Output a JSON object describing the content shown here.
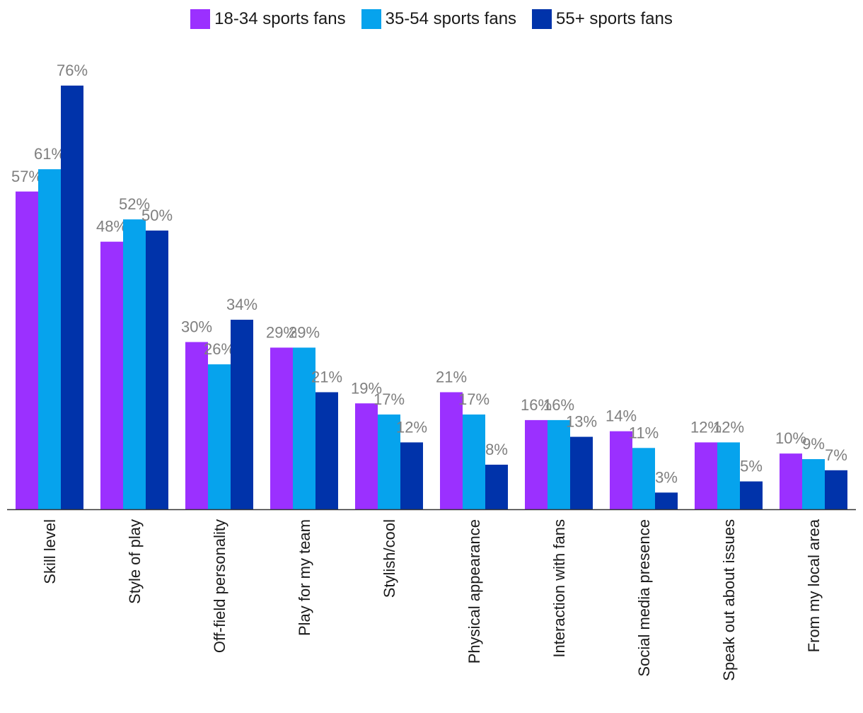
{
  "chart_data": {
    "type": "bar",
    "title": "",
    "xlabel": "",
    "ylabel": "",
    "ylim": [
      0,
      80
    ],
    "grid": false,
    "legend_position": "top-center",
    "value_suffix": "%",
    "categories": [
      "Skill level",
      "Style of play",
      "Off-field personality",
      "Play for my team",
      "Stylish/cool",
      "Physical appearance",
      "Interaction with fans",
      "Social media presence",
      "Speak out about issues",
      "From my local area"
    ],
    "series": [
      {
        "name": "18-34 sports fans",
        "color": "#9b30ff",
        "values": [
          57,
          48,
          30,
          29,
          19,
          21,
          16,
          14,
          12,
          10
        ]
      },
      {
        "name": "35-54 sports fans",
        "color": "#06a3ed",
        "values": [
          61,
          52,
          26,
          29,
          17,
          17,
          16,
          11,
          12,
          9
        ]
      },
      {
        "name": "55+ sports fans",
        "color": "#0033aa",
        "values": [
          76,
          50,
          34,
          21,
          12,
          8,
          13,
          3,
          5,
          7
        ]
      }
    ]
  }
}
